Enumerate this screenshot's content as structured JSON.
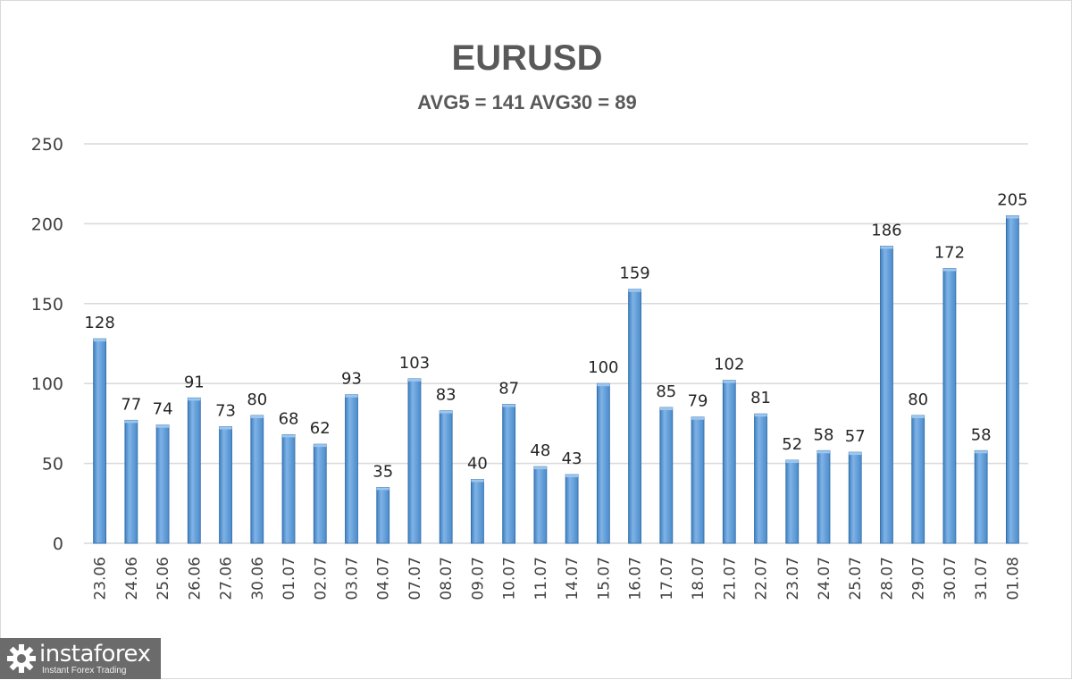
{
  "chart_data": {
    "type": "bar",
    "title": "EURUSD",
    "subtitle": "AVG5 = 141 AVG30 = 89",
    "categories": [
      "23.06",
      "24.06",
      "25.06",
      "26.06",
      "27.06",
      "30.06",
      "01.07",
      "02.07",
      "03.07",
      "04.07",
      "07.07",
      "08.07",
      "09.07",
      "10.07",
      "11.07",
      "14.07",
      "15.07",
      "16.07",
      "17.07",
      "18.07",
      "21.07",
      "22.07",
      "23.07",
      "24.07",
      "25.07",
      "28.07",
      "29.07",
      "30.07",
      "31.07",
      "01.08"
    ],
    "values": [
      128,
      77,
      74,
      91,
      73,
      80,
      68,
      62,
      93,
      35,
      103,
      83,
      40,
      87,
      48,
      43,
      100,
      159,
      85,
      79,
      102,
      81,
      52,
      58,
      57,
      186,
      80,
      172,
      58,
      205
    ],
    "y_ticks": [
      "0",
      "50",
      "100",
      "150",
      "200",
      "250"
    ],
    "ylim": [
      0,
      250
    ],
    "grid": true,
    "bar_color": "#5b9bd5",
    "data_labels": true
  },
  "logo": {
    "brand": "instaforex",
    "tagline": "Instant Forex Trading",
    "icon": "gear-icon"
  }
}
